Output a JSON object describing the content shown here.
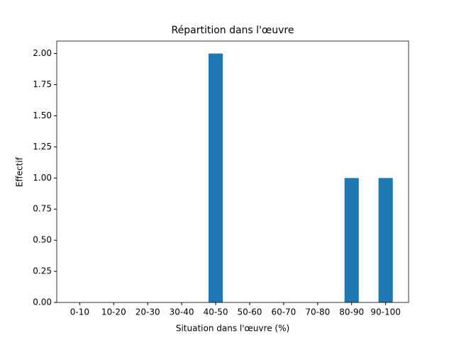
{
  "chart_data": {
    "type": "bar",
    "title": "Répartition dans l'œuvre",
    "x_label": "Situation dans l'œuvre (%)",
    "y_label": "Effectif",
    "categories": [
      "0-10",
      "10-20",
      "20-30",
      "30-40",
      "40-50",
      "50-60",
      "60-70",
      "70-80",
      "80-90",
      "90-100"
    ],
    "values": [
      0,
      0,
      0,
      0,
      2,
      0,
      0,
      0,
      1,
      1
    ],
    "color": "#1f77b4",
    "ylim": [
      0,
      2.1
    ],
    "yticks": [
      {
        "value": 0,
        "label": "0.00"
      },
      {
        "value": 0.25,
        "label": "0.25"
      },
      {
        "value": 0.5,
        "label": "0.50"
      },
      {
        "value": 0.75,
        "label": "0.75"
      },
      {
        "value": 1,
        "label": "1.00"
      },
      {
        "value": 1.25,
        "label": "1.25"
      },
      {
        "value": 1.5,
        "label": "1.50"
      },
      {
        "value": 1.75,
        "label": "1.75"
      },
      {
        "value": 2,
        "label": "2.00"
      }
    ],
    "grid": false
  }
}
